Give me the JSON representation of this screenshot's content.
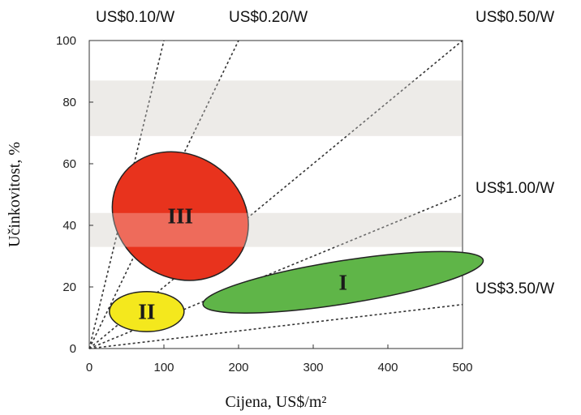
{
  "chart_data": {
    "type": "scatter",
    "title": "",
    "xlabel": "Cijena, US$/m²",
    "ylabel": "Učinkovitost, %",
    "xlim": [
      0,
      500
    ],
    "ylim": [
      0,
      100
    ],
    "x_ticks": [
      0,
      100,
      200,
      300,
      400,
      500
    ],
    "y_ticks": [
      0,
      20,
      40,
      60,
      80,
      100
    ],
    "grid": false,
    "shaded_bands": [
      {
        "y_from": 33,
        "y_to": 44,
        "color": "#e6e3df"
      },
      {
        "y_from": 69,
        "y_to": 87,
        "color": "#e6e3df"
      }
    ],
    "cost_lines": [
      {
        "label": "US$0.10/W",
        "cost_per_watt": 0.1
      },
      {
        "label": "US$0.20/W",
        "cost_per_watt": 0.2
      },
      {
        "label": "US$0.50/W",
        "cost_per_watt": 0.5
      },
      {
        "label": "US$1.00/W",
        "cost_per_watt": 1.0
      },
      {
        "label": "US$3.50/W",
        "cost_per_watt": 3.5
      }
    ],
    "regions": [
      {
        "label": "I",
        "color": "#5fb548",
        "cx": 340,
        "cy": 21.5,
        "rx": 190,
        "ry": 7,
        "angle_deg": -9
      },
      {
        "label": "II",
        "color": "#f4e81d",
        "cx": 77,
        "cy": 12,
        "rx": 50,
        "ry": 6.5,
        "angle_deg": 0
      },
      {
        "label": "III",
        "color": "#e8331d",
        "cx": 122,
        "cy": 43,
        "rx": 82,
        "ry": 23,
        "angle_deg": -56
      }
    ]
  }
}
